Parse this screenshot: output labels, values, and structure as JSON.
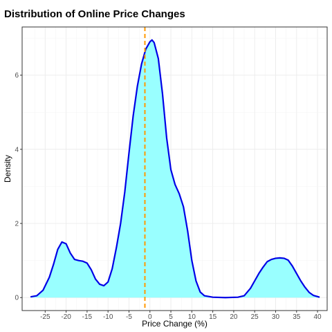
{
  "chart_data": {
    "type": "area",
    "title": "Distribution of Online Price Changes",
    "xlabel": "Price Change (%)",
    "ylabel": "Density",
    "xlim": [
      -30.5,
      42.3
    ],
    "ylim": [
      -0.35,
      7.3
    ],
    "x_ticks": [
      "-25",
      "-20",
      "-15",
      "-10",
      "-5",
      "0",
      "5",
      "10",
      "15",
      "20",
      "25",
      "30",
      "35",
      "40"
    ],
    "y_ticks": [
      "0",
      "2",
      "4",
      "6"
    ],
    "grid": true,
    "fill_color": "#99FFFF",
    "line_color": "#0000E6",
    "reference_line": {
      "x": -1.2,
      "color": "#FF9900",
      "style": "dashed"
    },
    "density": [
      [
        -28.5,
        0.02
      ],
      [
        -27,
        0.05
      ],
      [
        -25.5,
        0.2
      ],
      [
        -24,
        0.55
      ],
      [
        -23,
        0.9
      ],
      [
        -22,
        1.3
      ],
      [
        -21,
        1.5
      ],
      [
        -20,
        1.45
      ],
      [
        -19,
        1.2
      ],
      [
        -18,
        1.03
      ],
      [
        -17,
        1.0
      ],
      [
        -16,
        0.98
      ],
      [
        -15,
        0.93
      ],
      [
        -14,
        0.75
      ],
      [
        -13,
        0.5
      ],
      [
        -12,
        0.36
      ],
      [
        -11,
        0.32
      ],
      [
        -10,
        0.42
      ],
      [
        -9,
        0.78
      ],
      [
        -8,
        1.35
      ],
      [
        -7,
        2.0
      ],
      [
        -6,
        2.85
      ],
      [
        -5,
        3.9
      ],
      [
        -4,
        4.9
      ],
      [
        -3,
        5.7
      ],
      [
        -2,
        6.3
      ],
      [
        -1,
        6.7
      ],
      [
        0,
        6.9
      ],
      [
        0.5,
        6.95
      ],
      [
        1,
        6.88
      ],
      [
        2,
        6.45
      ],
      [
        3,
        5.5
      ],
      [
        4,
        4.3
      ],
      [
        5,
        3.45
      ],
      [
        6,
        3.05
      ],
      [
        7,
        2.8
      ],
      [
        8,
        2.45
      ],
      [
        9,
        1.8
      ],
      [
        10,
        1.0
      ],
      [
        11,
        0.45
      ],
      [
        12,
        0.15
      ],
      [
        13,
        0.05
      ],
      [
        15,
        0.01
      ],
      [
        18,
        0.0
      ],
      [
        21,
        0.01
      ],
      [
        22.5,
        0.05
      ],
      [
        24,
        0.25
      ],
      [
        25,
        0.45
      ],
      [
        26,
        0.65
      ],
      [
        27,
        0.82
      ],
      [
        28,
        0.97
      ],
      [
        29,
        1.03
      ],
      [
        30,
        1.06
      ],
      [
        31,
        1.07
      ],
      [
        32,
        1.06
      ],
      [
        33,
        1.01
      ],
      [
        34,
        0.85
      ],
      [
        35,
        0.65
      ],
      [
        36,
        0.45
      ],
      [
        37,
        0.28
      ],
      [
        38,
        0.14
      ],
      [
        39,
        0.06
      ],
      [
        40.5,
        0.01
      ]
    ]
  }
}
